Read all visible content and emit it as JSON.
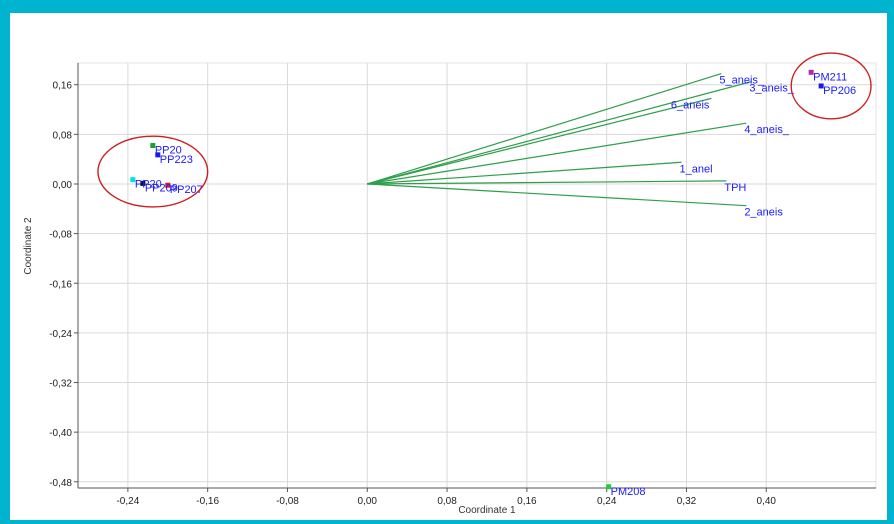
{
  "colors": {
    "frame": "#00b4d0",
    "vector": "#2e9e4a",
    "label": "#1a1aff",
    "circle": "#cc1f1f",
    "grid": "#d9d9d9"
  },
  "chart_data": {
    "type": "scatter",
    "title": "",
    "xlabel": "Coordinate 1",
    "ylabel": "Coordinate 2",
    "xlim": [
      -0.29,
      0.51
    ],
    "ylim": [
      -0.49,
      0.195
    ],
    "xticks": [
      -0.24,
      -0.16,
      -0.08,
      0.0,
      0.08,
      0.16,
      0.24,
      0.32,
      0.4
    ],
    "yticks": [
      0.16,
      0.08,
      0.0,
      -0.08,
      -0.16,
      -0.24,
      -0.32,
      -0.4,
      -0.48
    ],
    "xtick_labels": [
      "-0,24",
      "-0,16",
      "-0,08",
      "0,00",
      "0,08",
      "0,16",
      "0,24",
      "0,32",
      "0,40"
    ],
    "ytick_labels": [
      "0,16",
      "0,08",
      "0,00",
      "-0,08",
      "-0,16",
      "-0,24",
      "-0,32",
      "-0,40",
      "-0,48"
    ],
    "grid": true,
    "points": [
      {
        "label": "PP20",
        "x": -0.215,
        "y": 0.062,
        "color": "#1f9e2e"
      },
      {
        "label": "PP223",
        "x": -0.21,
        "y": 0.047,
        "color": "#1a1ae6"
      },
      {
        "label": "PP20",
        "x": -0.235,
        "y": 0.007,
        "color": "#00e0e8"
      },
      {
        "label": "PP209",
        "x": -0.225,
        "y": 0.001,
        "color": "#111111"
      },
      {
        "label": "PP207",
        "x": -0.2,
        "y": -0.002,
        "color": "#d81b2a"
      },
      {
        "label": "PM211",
        "x": 0.445,
        "y": 0.18,
        "color": "#b02ab0"
      },
      {
        "label": "PP206",
        "x": 0.455,
        "y": 0.158,
        "color": "#1a1ae6"
      },
      {
        "label": "PM208",
        "x": 0.242,
        "y": -0.488,
        "color": "#22cc33"
      }
    ],
    "vectors": [
      {
        "label": "5_aneis_",
        "x": 0.355,
        "y": 0.178
      },
      {
        "label": "3_aneis_",
        "x": 0.385,
        "y": 0.165
      },
      {
        "label": "6_aneis",
        "x": 0.345,
        "y": 0.138
      },
      {
        "label": "4_aneis_",
        "x": 0.38,
        "y": 0.098
      },
      {
        "label": "1_anel",
        "x": 0.315,
        "y": 0.035
      },
      {
        "label": "TPH",
        "x": 0.36,
        "y": 0.005
      },
      {
        "label": "2_aneis",
        "x": 0.38,
        "y": -0.035
      }
    ],
    "highlights": [
      {
        "name": "left-cluster",
        "cx": -0.215,
        "cy": 0.02,
        "rx": 0.055,
        "ry": 0.057
      },
      {
        "name": "right-cluster",
        "cx": 0.465,
        "cy": 0.158,
        "rx": 0.04,
        "ry": 0.053
      }
    ]
  }
}
